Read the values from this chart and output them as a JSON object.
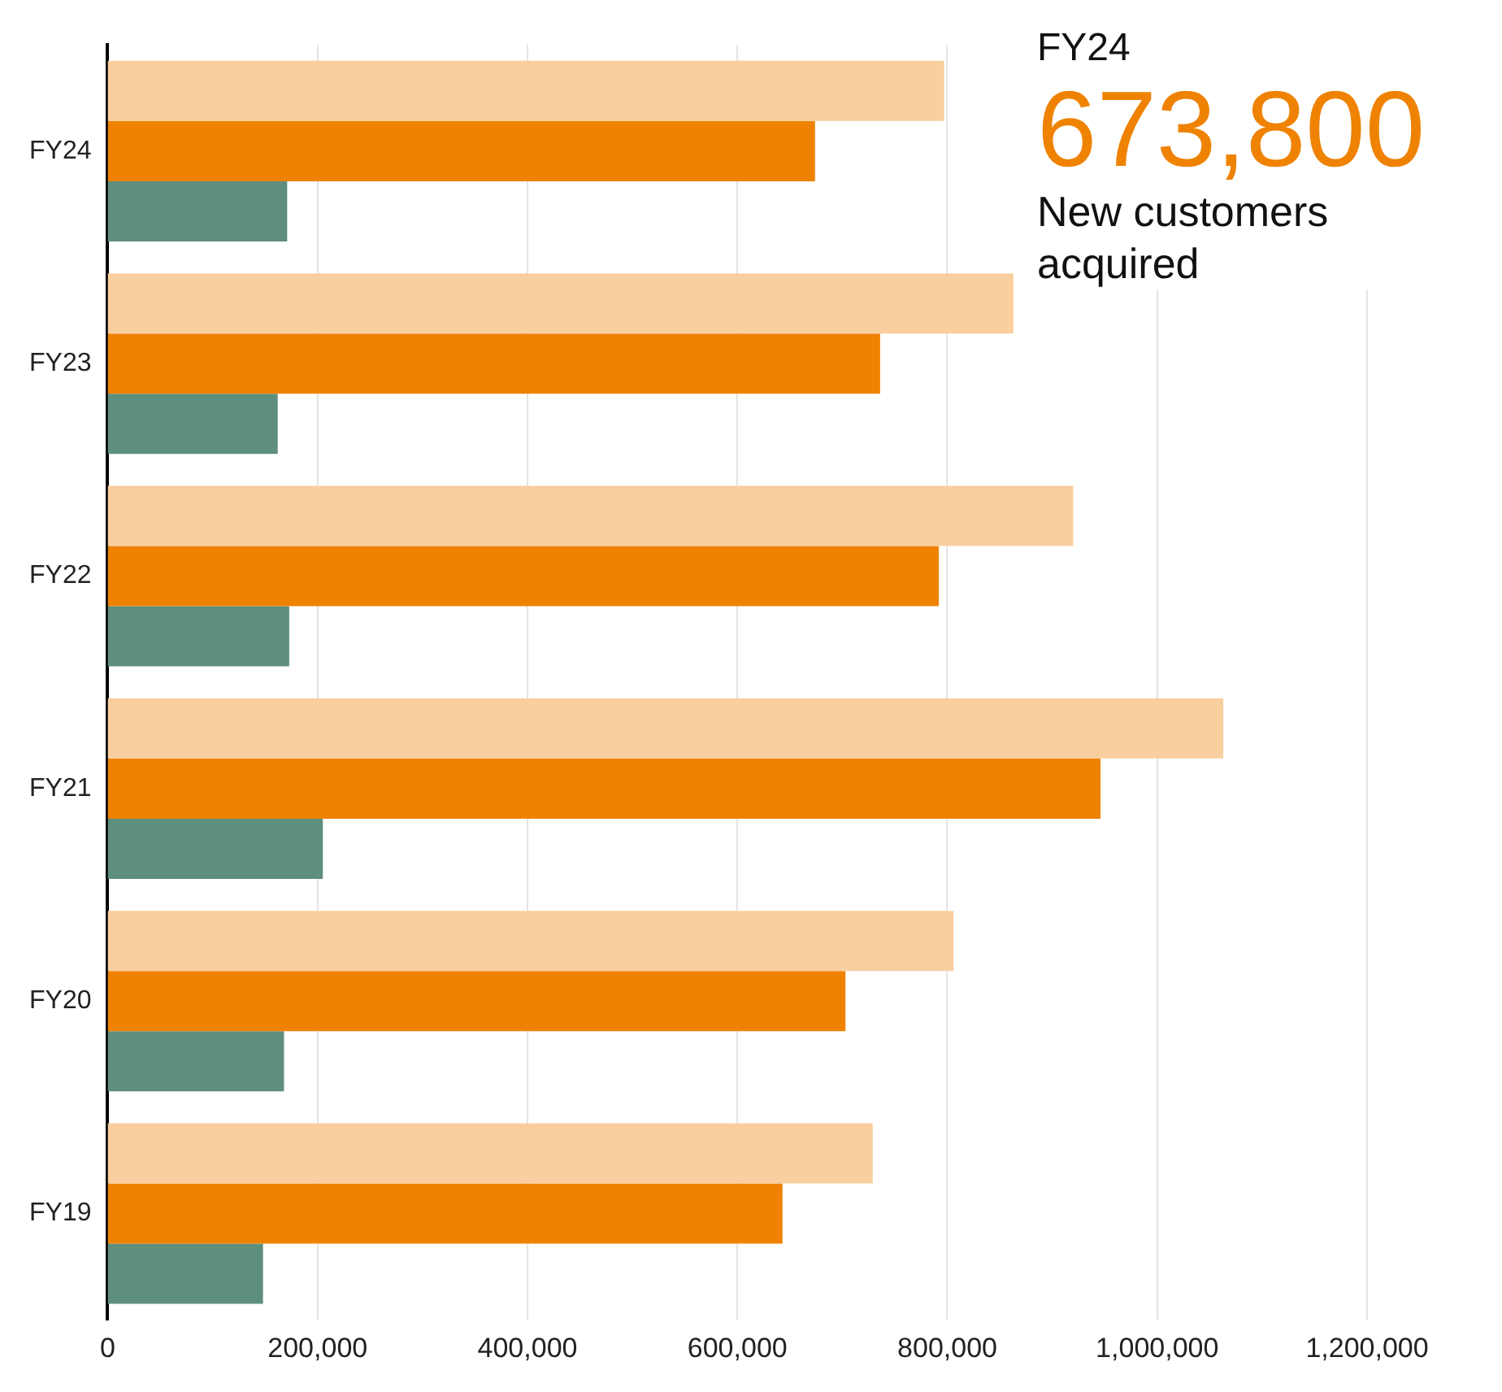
{
  "chart_data": {
    "type": "bar",
    "orientation": "horizontal",
    "categories": [
      "FY24",
      "FY23",
      "FY22",
      "FY21",
      "FY20",
      "FY19"
    ],
    "series": [
      {
        "color": "#f9cf9f",
        "values": [
          797000,
          863000,
          920000,
          1063000,
          806000,
          729000
        ]
      },
      {
        "color": "#ef8200",
        "values": [
          674000,
          736000,
          792000,
          946000,
          703000,
          643000
        ]
      },
      {
        "color": "#5e8e7c",
        "values": [
          171000,
          162000,
          173000,
          205000,
          168000,
          148000
        ]
      }
    ],
    "xlim": [
      0,
      1200000
    ],
    "xticks": [
      0,
      {
        "value": 200000,
        "label": "200,000"
      },
      {
        "value": 400000,
        "label": "400,000"
      },
      {
        "value": 600000,
        "label": "600,000"
      },
      {
        "value": 800000,
        "label": "800,000"
      },
      {
        "value": 1000000,
        "label": "1,000,000"
      },
      {
        "value": 1200000,
        "label": "1,200,000"
      }
    ],
    "grid": "x",
    "legend": false,
    "annotations": [
      "FY24",
      "673,800",
      "New customers acquired"
    ]
  }
}
